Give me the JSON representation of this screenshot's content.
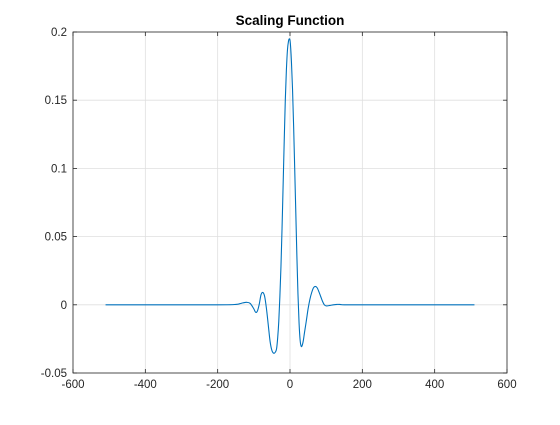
{
  "chart_data": {
    "type": "line",
    "title": "Scaling Function",
    "xlabel": "",
    "ylabel": "",
    "xlim": [
      -600,
      600
    ],
    "ylim": [
      -0.05,
      0.2
    ],
    "grid": true,
    "legend": "none",
    "xticks": [
      -600,
      -400,
      -200,
      0,
      200,
      400,
      600
    ],
    "xtick_labels": [
      "-600",
      "-400",
      "-200",
      "0",
      "200",
      "400",
      "600"
    ],
    "yticks": [
      -0.05,
      0,
      0.05,
      0.1,
      0.15,
      0.2
    ],
    "ytick_labels": [
      "-0.05",
      "0",
      "0.05",
      "0.1",
      "0.15",
      "0.2"
    ],
    "series": [
      {
        "color": "#0072BD",
        "x": [
          -510,
          -200,
          -150,
          -140,
          -130,
          -120,
          -110,
          -100,
          -95,
          -90,
          -85,
          -80,
          -75,
          -70,
          -65,
          -60,
          -55,
          -50,
          -45,
          -40,
          -37,
          -34,
          -31,
          -28,
          -25,
          -22,
          -19,
          -16,
          -13,
          -10,
          -7,
          -4,
          -2,
          0,
          2,
          4,
          7,
          10,
          13,
          16,
          19,
          22,
          25,
          28,
          31,
          34,
          37,
          40,
          45,
          50,
          55,
          60,
          65,
          70,
          75,
          80,
          85,
          90,
          95,
          100,
          110,
          120,
          130,
          140,
          150,
          200,
          510
        ],
        "y": [
          0,
          0,
          0.0003,
          0.0007,
          0.0014,
          0.0018,
          0.001,
          -0.003,
          -0.0055,
          -0.0045,
          0.0005,
          0.0075,
          0.009,
          0.006,
          -0.003,
          -0.015,
          -0.027,
          -0.0335,
          -0.0355,
          -0.0345,
          -0.032,
          -0.024,
          -0.012,
          0.006,
          0.028,
          0.056,
          0.088,
          0.12,
          0.15,
          0.172,
          0.187,
          0.1935,
          0.195,
          0.194,
          0.188,
          0.178,
          0.158,
          0.131,
          0.1,
          0.068,
          0.036,
          0.008,
          -0.013,
          -0.026,
          -0.0305,
          -0.0295,
          -0.026,
          -0.0205,
          -0.012,
          -0.003,
          0.004,
          0.009,
          0.0125,
          0.0135,
          0.0125,
          0.0095,
          0.006,
          0.0025,
          0,
          -0.0008,
          -0.0005,
          0,
          0.0003,
          0.0002,
          0,
          0,
          0
        ]
      }
    ]
  }
}
